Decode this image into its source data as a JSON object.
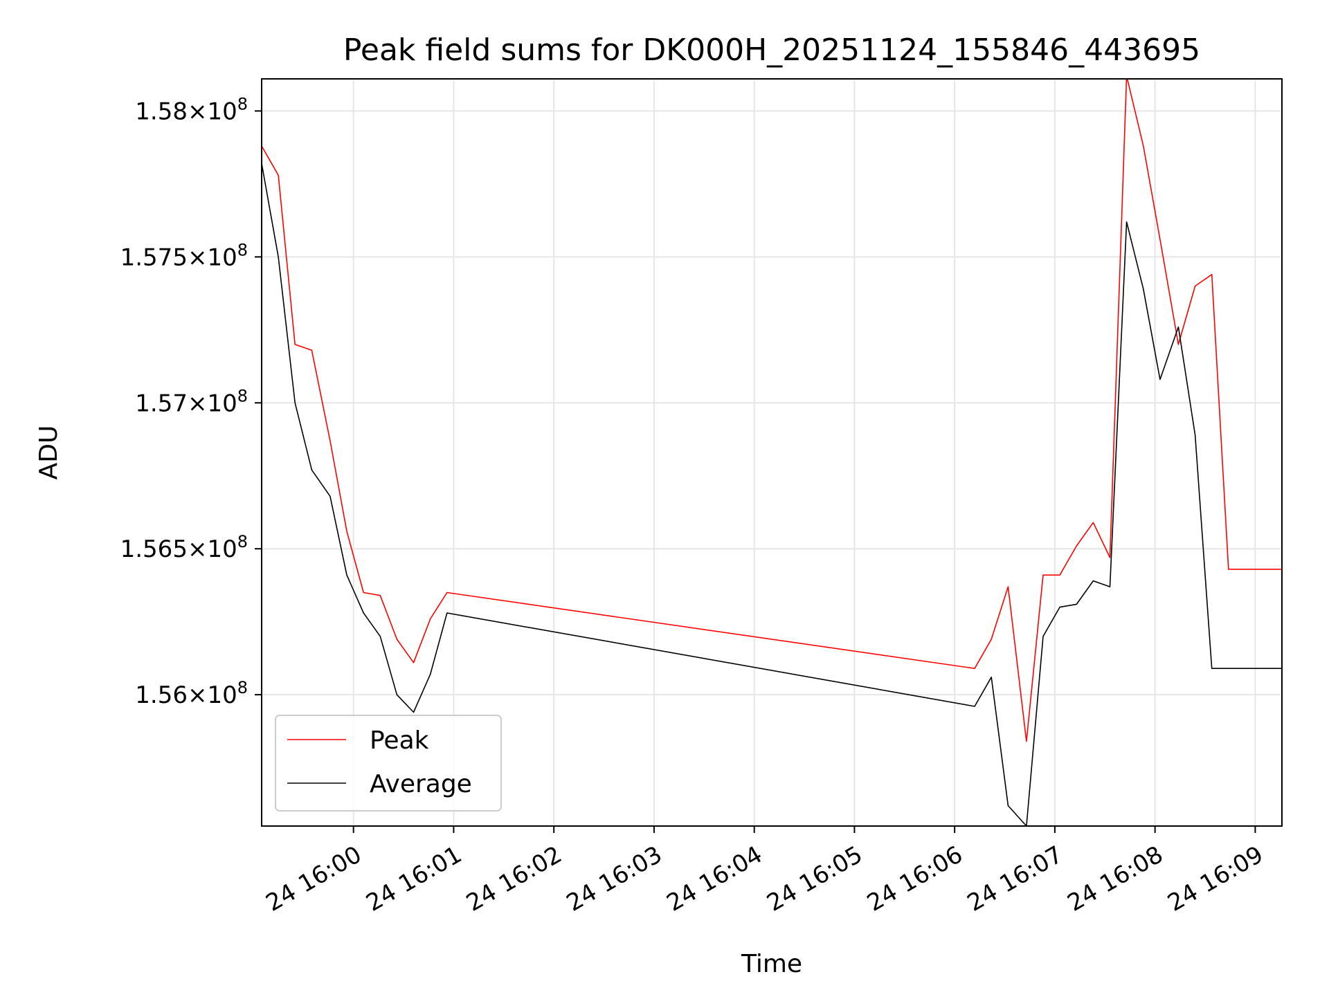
{
  "chart_data": {
    "type": "line",
    "title": "Peak field sums for DK000H_20251124_155846_443695",
    "xlabel": "Time",
    "ylabel": "ADU",
    "grid": true,
    "legend_position": "lower-left",
    "x_time_range": [
      "15:59:05",
      "16:09:16"
    ],
    "ylim": [
      155550000,
      158110000
    ],
    "x_ticks": [
      {
        "time": "16:00:00",
        "label": "24 16:00"
      },
      {
        "time": "16:01:00",
        "label": "24 16:01"
      },
      {
        "time": "16:02:00",
        "label": "24 16:02"
      },
      {
        "time": "16:03:00",
        "label": "24 16:03"
      },
      {
        "time": "16:04:00",
        "label": "24 16:04"
      },
      {
        "time": "16:05:00",
        "label": "24 16:05"
      },
      {
        "time": "16:06:00",
        "label": "24 16:06"
      },
      {
        "time": "16:07:00",
        "label": "24 16:07"
      },
      {
        "time": "16:08:00",
        "label": "24 16:08"
      },
      {
        "time": "16:09:00",
        "label": "24 16:09"
      }
    ],
    "y_ticks": [
      {
        "value": 156000000,
        "mantissa": "1.56",
        "exponent": "8"
      },
      {
        "value": 156500000,
        "mantissa": "1.565",
        "exponent": "8"
      },
      {
        "value": 157000000,
        "mantissa": "1.57",
        "exponent": "8"
      },
      {
        "value": 157500000,
        "mantissa": "1.575",
        "exponent": "8"
      },
      {
        "value": 158000000,
        "mantissa": "1.58",
        "exponent": "8"
      }
    ],
    "x": [
      "15:59:05",
      "15:59:15",
      "15:59:25",
      "15:59:35",
      "15:59:46",
      "15:59:56",
      "16:00:06",
      "16:00:16",
      "16:00:26",
      "16:00:36",
      "16:00:46",
      "16:00:56",
      "16:06:12",
      "16:06:22",
      "16:06:32",
      "16:06:43",
      "16:06:53",
      "16:07:03",
      "16:07:13",
      "16:07:23",
      "16:07:33",
      "16:07:43",
      "16:07:53",
      "16:08:03",
      "16:08:14",
      "16:08:24",
      "16:08:34",
      "16:08:44",
      "16:09:16"
    ],
    "series": [
      {
        "name": "Peak",
        "color": "#ff0000",
        "values": [
          157880000,
          157780000,
          157200000,
          157180000,
          156870000,
          156560000,
          156350000,
          156340000,
          156190000,
          156110000,
          156260000,
          156350000,
          156090000,
          156190000,
          156370000,
          155840000,
          156410000,
          156410000,
          156510000,
          156590000,
          156470000,
          158120000,
          157880000,
          157560000,
          157200000,
          157400000,
          157440000,
          156430000,
          156430000
        ]
      },
      {
        "name": "Average",
        "color": "#000000",
        "values": [
          157820000,
          157500000,
          157000000,
          156770000,
          156680000,
          156410000,
          156280000,
          156200000,
          156000000,
          155940000,
          156070000,
          156280000,
          155960000,
          156060000,
          155620000,
          155550000,
          156200000,
          156300000,
          156310000,
          156390000,
          156370000,
          157620000,
          157390000,
          157080000,
          157260000,
          156890000,
          156090000,
          156090000,
          156090000
        ]
      }
    ]
  }
}
